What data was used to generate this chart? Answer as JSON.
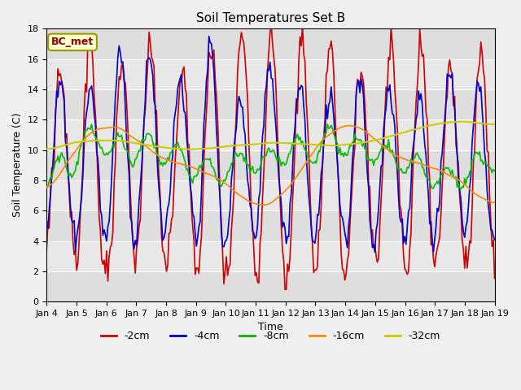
{
  "title": "Soil Temperatures Set B",
  "xlabel": "Time",
  "ylabel": "Soil Temperature (C)",
  "annotation_text": "BC_met",
  "ylim": [
    0,
    18
  ],
  "yticks": [
    0,
    2,
    4,
    6,
    8,
    10,
    12,
    14,
    16,
    18
  ],
  "xtick_labels": [
    "Jan 4",
    "Jan 5",
    "Jan 6",
    "Jan 7",
    "Jan 8",
    "Jan 9",
    "Jan 10",
    "Jan 11",
    "Jan 12",
    "Jan 13",
    "Jan 14",
    "Jan 15",
    "Jan 16",
    "Jan 17",
    "Jan 18",
    "Jan 19"
  ],
  "series_colors": [
    "#cc0000",
    "#0000cc",
    "#00bb00",
    "#ff8800",
    "#cccc00"
  ],
  "series_labels": [
    "-2cm",
    "-4cm",
    "-8cm",
    "-16cm",
    "-32cm"
  ],
  "series_linewidths": [
    1.2,
    1.2,
    1.2,
    1.2,
    1.5
  ],
  "bg_color": "#f0f0f0",
  "plot_bg_color": "#e8e8e8",
  "grid_color": "#ffffff",
  "annotation_bg": "#ffffcc",
  "annotation_border": "#999900",
  "annotation_text_color": "#880000",
  "legend_fontsize": 9,
  "axis_fontsize": 8,
  "title_fontsize": 11
}
